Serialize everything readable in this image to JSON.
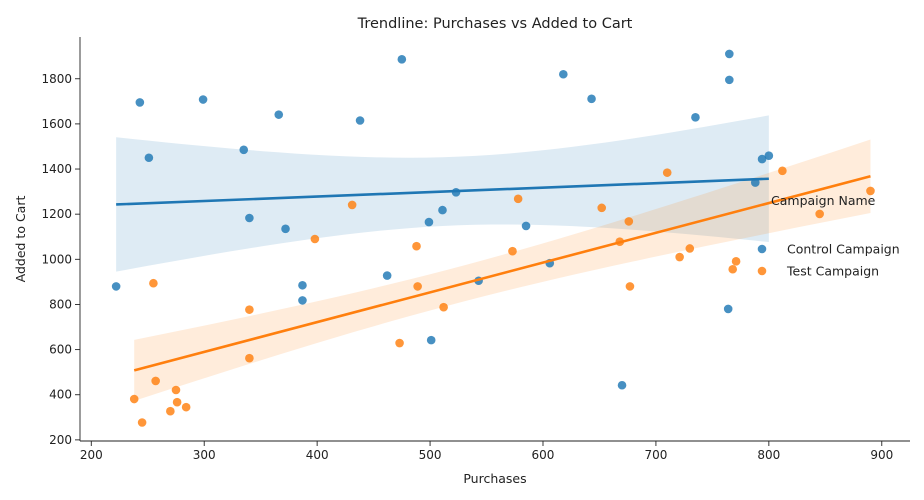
{
  "chart_data": {
    "type": "scatter",
    "title": "Trendline: Purchases vs Added to Cart",
    "xlabel": "Purchases",
    "ylabel": "Added to Cart",
    "xlim": [
      190,
      925
    ],
    "ylim": [
      195,
      1985
    ],
    "xticks": [
      200,
      300,
      400,
      500,
      600,
      700,
      800,
      900
    ],
    "yticks": [
      200,
      400,
      600,
      800,
      1000,
      1200,
      1400,
      1600,
      1800
    ],
    "grid": false,
    "legend": {
      "title": "Campaign Name",
      "placement": "right"
    },
    "series": [
      {
        "name": "Control Campaign",
        "color": "#1f77b4",
        "points": [
          [
            222,
            880
          ],
          [
            243,
            1695
          ],
          [
            251,
            1450
          ],
          [
            299,
            1708
          ],
          [
            335,
            1485
          ],
          [
            340,
            1183
          ],
          [
            366,
            1641
          ],
          [
            372,
            1135
          ],
          [
            387,
            885
          ],
          [
            387,
            818
          ],
          [
            438,
            1615
          ],
          [
            462,
            928
          ],
          [
            475,
            1886
          ],
          [
            499,
            1165
          ],
          [
            501,
            642
          ],
          [
            511,
            1218
          ],
          [
            523,
            1297
          ],
          [
            543,
            905
          ],
          [
            585,
            1148
          ],
          [
            606,
            983
          ],
          [
            618,
            1820
          ],
          [
            643,
            1711
          ],
          [
            670,
            442
          ],
          [
            735,
            1629
          ],
          [
            764,
            780
          ],
          [
            765,
            1910
          ],
          [
            765,
            1795
          ],
          [
            788,
            1340
          ],
          [
            794,
            1444
          ],
          [
            800,
            1459
          ]
        ],
        "trend": {
          "x": [
            222,
            800
          ],
          "y": [
            1243,
            1357
          ]
        }
      },
      {
        "name": "Test Campaign",
        "color": "#ff7f0e",
        "points": [
          [
            238,
            381
          ],
          [
            245,
            277
          ],
          [
            255,
            894
          ],
          [
            257,
            461
          ],
          [
            270,
            327
          ],
          [
            275,
            421
          ],
          [
            276,
            367
          ],
          [
            284,
            345
          ],
          [
            340,
            777
          ],
          [
            340,
            562
          ],
          [
            398,
            1090
          ],
          [
            431,
            1241
          ],
          [
            473,
            629
          ],
          [
            488,
            1058
          ],
          [
            489,
            880
          ],
          [
            512,
            788
          ],
          [
            573,
            1036
          ],
          [
            578,
            1268
          ],
          [
            652,
            1228
          ],
          [
            668,
            1078
          ],
          [
            676,
            1168
          ],
          [
            677,
            880
          ],
          [
            710,
            1384
          ],
          [
            721,
            1010
          ],
          [
            730,
            1048
          ],
          [
            768,
            956
          ],
          [
            771,
            991
          ],
          [
            812,
            1392
          ],
          [
            845,
            1201
          ],
          [
            890,
            1303
          ]
        ],
        "trend": {
          "x": [
            238,
            890
          ],
          "y": [
            508,
            1368
          ]
        }
      }
    ]
  }
}
